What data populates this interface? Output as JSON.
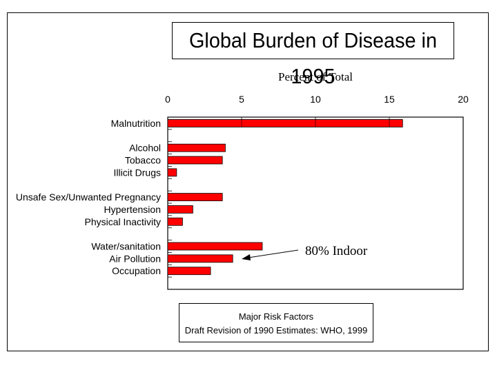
{
  "title": "Global Burden of Disease in 1995",
  "caption": {
    "line1": "Major Risk Factors",
    "line2": "Draft Revision of 1990 Estimates: WHO, 1999"
  },
  "annotation": "80% Indoor",
  "colors": {
    "bar": "#ff0000",
    "bar_stroke": "#000000",
    "axis": "#000000"
  },
  "chart_data": {
    "type": "bar",
    "orientation": "horizontal",
    "title": "Global Burden of Disease in 1995",
    "xlabel": "Percent of Total",
    "ylabel": "",
    "xlim": [
      0,
      20
    ],
    "xticks": [
      "0",
      "5",
      "10",
      "15",
      "20"
    ],
    "categories": [
      "Malnutrition",
      "",
      "Alcohol",
      "Tobacco",
      "Illicit Drugs",
      "",
      "Unsafe Sex/Unwanted Pregnancy",
      "Hypertension",
      "Physical Inactivity",
      "",
      "Water/sanitation",
      "Air Pollution",
      "Occupation",
      ""
    ],
    "values": [
      15.9,
      null,
      3.9,
      3.7,
      0.6,
      null,
      3.7,
      1.7,
      1.0,
      null,
      6.4,
      4.4,
      2.9,
      null
    ],
    "grid": false,
    "legend": "none",
    "annotations": [
      {
        "text": "80% Indoor",
        "target": "Air Pollution"
      }
    ]
  }
}
